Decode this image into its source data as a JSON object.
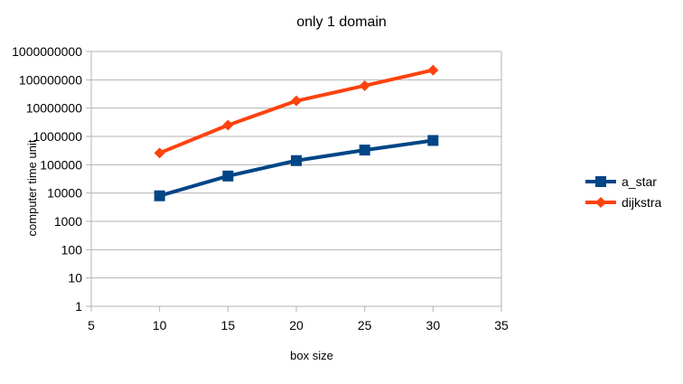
{
  "chart_data": {
    "type": "line",
    "title": "only 1 domain",
    "xlabel": "box size",
    "ylabel": "computer time unit",
    "xlim": [
      5,
      35
    ],
    "xticks": [
      5,
      10,
      15,
      20,
      25,
      30,
      35
    ],
    "xtick_labels": [
      "5",
      "10",
      "15",
      "20",
      "25",
      "30",
      "35"
    ],
    "yscale": "log",
    "ylim": [
      1,
      1000000000
    ],
    "yticks": [
      1,
      10,
      100,
      1000,
      10000,
      100000,
      1000000,
      10000000,
      100000000,
      1000000000
    ],
    "ytick_labels": [
      "1",
      "10",
      "100",
      "1000",
      "10000",
      "100000",
      "1000000",
      "10000000",
      "100000000",
      "1000000000"
    ],
    "grid": "horizontal",
    "legend_position": "right",
    "x": [
      10,
      15,
      20,
      25,
      30
    ],
    "series": [
      {
        "name": "a_star",
        "color": "#004586",
        "marker": "square",
        "values": [
          8000,
          40000,
          140000,
          330000,
          720000
        ]
      },
      {
        "name": "dijkstra",
        "color": "#ff420e",
        "marker": "diamond",
        "values": [
          260000,
          2500000,
          18000000,
          62000000,
          220000000
        ]
      }
    ]
  }
}
